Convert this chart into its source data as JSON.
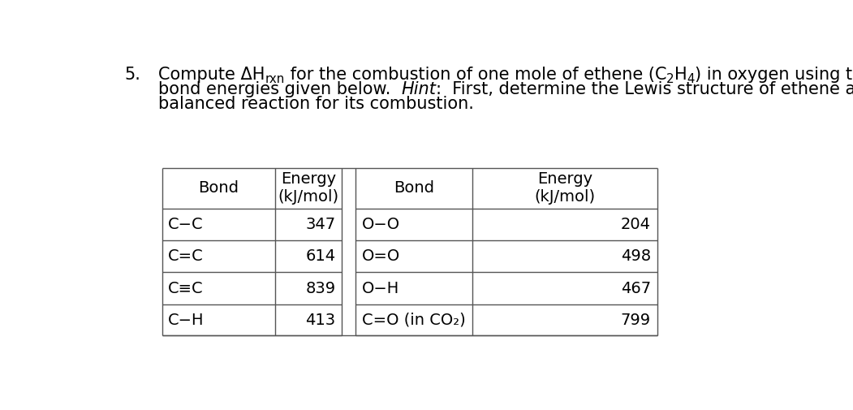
{
  "bg_color": "#ffffff",
  "text_color": "#000000",
  "table_line_color": "#555555",
  "font_size_text": 15,
  "font_size_table": 14,
  "table": {
    "rows_left": [
      [
        "C−C",
        "347"
      ],
      [
        "C=C",
        "614"
      ],
      [
        "C≡C",
        "839"
      ],
      [
        "C−H",
        "413"
      ]
    ],
    "rows_right": [
      [
        "O−O",
        "204"
      ],
      [
        "O=O",
        "498"
      ],
      [
        "O−H",
        "467"
      ],
      [
        "C=O (in CO₂)",
        "799"
      ]
    ]
  }
}
